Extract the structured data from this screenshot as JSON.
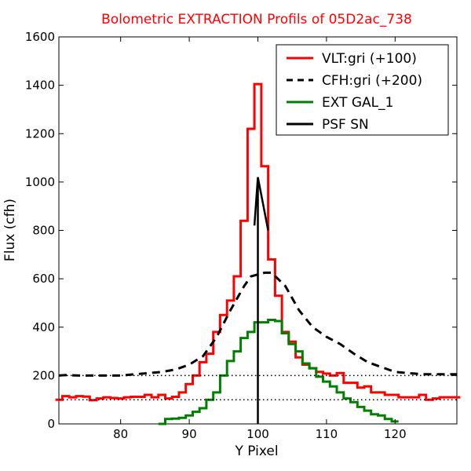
{
  "chart_data": {
    "type": "line",
    "title": "Bolometric EXTRACTION Profils of 05D2ac_738",
    "title_color": "#ff0000",
    "xlabel": "Y Pixel",
    "ylabel": "Flux (cfh)",
    "xlim": [
      71,
      129
    ],
    "ylim": [
      0,
      1600
    ],
    "x_ticks": [
      80,
      90,
      100,
      110,
      120
    ],
    "y_ticks": [
      0,
      200,
      400,
      600,
      800,
      1000,
      1200,
      1400,
      1600
    ],
    "grid": false,
    "legend_position": "top-right",
    "reference_lines": [
      {
        "y": 200,
        "style": "dotted",
        "color": "#000000"
      },
      {
        "y": 100,
        "style": "dotted",
        "color": "#000000"
      }
    ],
    "series": [
      {
        "name": "VLT:gri (+100)",
        "color": "#ff0000",
        "style": "step",
        "x": [
          71,
          72,
          73,
          74,
          75,
          76,
          77,
          78,
          79,
          80,
          81,
          82,
          83,
          84,
          85,
          86,
          87,
          88,
          89,
          90,
          91,
          92,
          93,
          94,
          95,
          96,
          97,
          98,
          99,
          100,
          101,
          102,
          103,
          104,
          105,
          106,
          107,
          108,
          109,
          110,
          111,
          112,
          113,
          114,
          115,
          116,
          117,
          118,
          119,
          120,
          121,
          122,
          123,
          124,
          125,
          126,
          127,
          128,
          129
        ],
        "y": [
          100,
          115,
          110,
          115,
          113,
          98,
          105,
          110,
          107,
          105,
          110,
          112,
          112,
          120,
          110,
          120,
          105,
          112,
          130,
          165,
          200,
          255,
          290,
          380,
          450,
          510,
          610,
          840,
          1220,
          1405,
          1065,
          680,
          530,
          380,
          340,
          275,
          245,
          230,
          215,
          208,
          200,
          210,
          170,
          170,
          150,
          155,
          130,
          130,
          120,
          120,
          110,
          110,
          110,
          120,
          100,
          105,
          110,
          110,
          110
        ]
      },
      {
        "name": "CFH:gri (+200)",
        "color": "#000000",
        "style": "dashed",
        "x": [
          71,
          72,
          74,
          76,
          78,
          80,
          82,
          84,
          86,
          88,
          90,
          92,
          94,
          96,
          98,
          99,
          100,
          101,
          102,
          104,
          106,
          108,
          110,
          112,
          114,
          116,
          118,
          120,
          122,
          124,
          126,
          128,
          129
        ],
        "y": [
          200,
          202,
          200,
          200,
          200,
          200,
          205,
          210,
          215,
          225,
          245,
          280,
          360,
          470,
          570,
          610,
          618,
          625,
          625,
          570,
          470,
          400,
          360,
          330,
          290,
          255,
          235,
          215,
          210,
          205,
          205,
          205,
          205
        ]
      },
      {
        "name": "EXT GAL_1",
        "color": "#008000",
        "style": "step",
        "x": [
          86,
          87,
          88,
          89,
          90,
          91,
          92,
          93,
          94,
          95,
          96,
          97,
          98,
          99,
          100,
          101,
          102,
          103,
          104,
          105,
          106,
          107,
          108,
          109,
          110,
          111,
          112,
          113,
          114,
          115,
          116,
          117,
          118,
          119,
          120
        ],
        "y": [
          0,
          20,
          22,
          25,
          35,
          50,
          65,
          100,
          130,
          200,
          260,
          300,
          355,
          380,
          420,
          420,
          430,
          425,
          375,
          330,
          300,
          250,
          230,
          195,
          175,
          155,
          130,
          105,
          90,
          70,
          55,
          40,
          35,
          20,
          10
        ]
      },
      {
        "name": "PSF SN",
        "color": "#000000",
        "style": "solid",
        "x": [
          100,
          100,
          99.5,
          100,
          101.5
        ],
        "y": [
          0,
          1020,
          820,
          1020,
          800
        ]
      }
    ]
  }
}
